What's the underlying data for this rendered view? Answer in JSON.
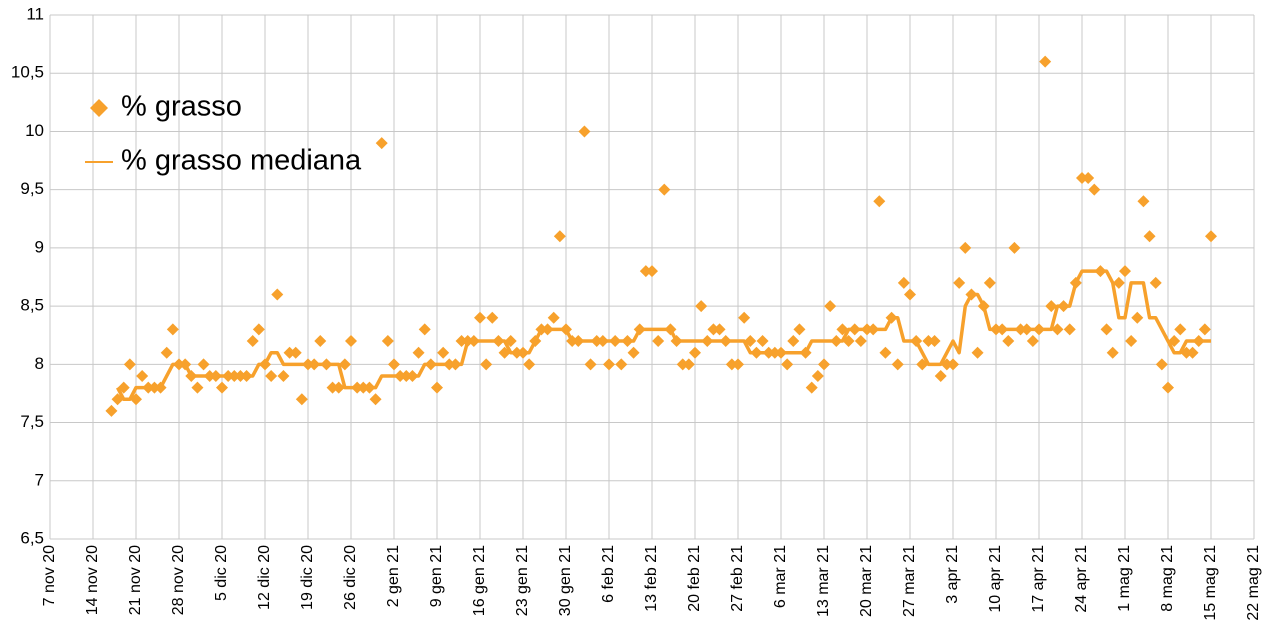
{
  "chart_data": {
    "type": "scatter-line",
    "x": [
      "2020-11-17",
      "2020-11-18",
      "2020-11-19",
      "2020-11-20",
      "2020-11-21",
      "2020-11-22",
      "2020-11-23",
      "2020-11-24",
      "2020-11-25",
      "2020-11-26",
      "2020-11-27",
      "2020-11-28",
      "2020-11-29",
      "2020-11-30",
      "2020-12-01",
      "2020-12-02",
      "2020-12-03",
      "2020-12-04",
      "2020-12-05",
      "2020-12-06",
      "2020-12-07",
      "2020-12-08",
      "2020-12-09",
      "2020-12-10",
      "2020-12-11",
      "2020-12-12",
      "2020-12-13",
      "2020-12-14",
      "2020-12-15",
      "2020-12-16",
      "2020-12-17",
      "2020-12-18",
      "2020-12-19",
      "2020-12-20",
      "2020-12-21",
      "2020-12-22",
      "2020-12-23",
      "2020-12-24",
      "2020-12-25",
      "2020-12-26",
      "2020-12-27",
      "2020-12-28",
      "2020-12-29",
      "2020-12-30",
      "2020-12-31",
      "2021-01-01",
      "2021-01-02",
      "2021-01-03",
      "2021-01-04",
      "2021-01-05",
      "2021-01-06",
      "2021-01-07",
      "2021-01-08",
      "2021-01-09",
      "2021-01-10",
      "2021-01-11",
      "2021-01-12",
      "2021-01-13",
      "2021-01-14",
      "2021-01-15",
      "2021-01-16",
      "2021-01-17",
      "2021-01-18",
      "2021-01-19",
      "2021-01-20",
      "2021-01-21",
      "2021-01-22",
      "2021-01-23",
      "2021-01-24",
      "2021-01-25",
      "2021-01-26",
      "2021-01-27",
      "2021-01-28",
      "2021-01-29",
      "2021-01-30",
      "2021-01-31",
      "2021-02-01",
      "2021-02-02",
      "2021-02-03",
      "2021-02-04",
      "2021-02-05",
      "2021-02-06",
      "2021-02-07",
      "2021-02-08",
      "2021-02-09",
      "2021-02-10",
      "2021-02-11",
      "2021-02-12",
      "2021-02-13",
      "2021-02-14",
      "2021-02-15",
      "2021-02-16",
      "2021-02-17",
      "2021-02-18",
      "2021-02-19",
      "2021-02-20",
      "2021-02-21",
      "2021-02-22",
      "2021-02-23",
      "2021-02-24",
      "2021-02-25",
      "2021-02-26",
      "2021-02-27",
      "2021-02-28",
      "2021-03-01",
      "2021-03-02",
      "2021-03-03",
      "2021-03-04",
      "2021-03-05",
      "2021-03-06",
      "2021-03-07",
      "2021-03-08",
      "2021-03-09",
      "2021-03-10",
      "2021-03-11",
      "2021-03-12",
      "2021-03-13",
      "2021-03-14",
      "2021-03-15",
      "2021-03-16",
      "2021-03-17",
      "2021-03-18",
      "2021-03-19",
      "2021-03-20",
      "2021-03-21",
      "2021-03-22",
      "2021-03-23",
      "2021-03-24",
      "2021-03-25",
      "2021-03-26",
      "2021-03-27",
      "2021-03-28",
      "2021-03-29",
      "2021-03-30",
      "2021-03-31",
      "2021-04-01",
      "2021-04-02",
      "2021-04-03",
      "2021-04-04",
      "2021-04-05",
      "2021-04-06",
      "2021-04-07",
      "2021-04-08",
      "2021-04-09",
      "2021-04-10",
      "2021-04-11",
      "2021-04-12",
      "2021-04-13",
      "2021-04-14",
      "2021-04-15",
      "2021-04-16",
      "2021-04-17",
      "2021-04-18",
      "2021-04-19",
      "2021-04-20",
      "2021-04-21",
      "2021-04-22",
      "2021-04-23",
      "2021-04-24",
      "2021-04-25",
      "2021-04-26",
      "2021-04-27",
      "2021-04-28",
      "2021-04-29",
      "2021-04-30",
      "2021-05-01",
      "2021-05-02",
      "2021-05-03",
      "2021-05-04",
      "2021-05-05",
      "2021-05-06",
      "2021-05-07",
      "2021-05-08",
      "2021-05-09",
      "2021-05-10",
      "2021-05-11",
      "2021-05-12",
      "2021-05-13",
      "2021-05-14",
      "2021-05-15"
    ],
    "series": [
      {
        "name": "% grasso",
        "kind": "scatter",
        "color": "#f7a12c",
        "values": [
          7.6,
          7.7,
          7.8,
          8.0,
          7.7,
          7.9,
          7.8,
          7.8,
          7.8,
          8.1,
          8.3,
          8.0,
          8.0,
          7.9,
          7.8,
          8.0,
          7.9,
          7.9,
          7.8,
          7.9,
          7.9,
          7.9,
          7.9,
          8.2,
          8.3,
          8.0,
          7.9,
          8.6,
          7.9,
          8.1,
          8.1,
          7.7,
          8.0,
          8.0,
          8.2,
          8.0,
          7.8,
          7.8,
          8.0,
          8.2,
          7.8,
          7.8,
          7.8,
          7.7,
          9.9,
          8.2,
          8.0,
          7.9,
          7.9,
          7.9,
          8.1,
          8.3,
          8.0,
          7.8,
          8.1,
          8.0,
          8.0,
          8.2,
          8.2,
          8.2,
          8.4,
          8.0,
          8.4,
          8.2,
          8.1,
          8.2,
          8.1,
          8.1,
          8.0,
          8.2,
          8.3,
          8.3,
          8.4,
          9.1,
          8.3,
          8.2,
          8.2,
          10.0,
          8.0,
          8.2,
          8.2,
          8.0,
          8.2,
          8.0,
          8.2,
          8.1,
          8.3,
          8.8,
          8.8,
          8.2,
          9.5,
          8.3,
          8.2,
          8.0,
          8.0,
          8.1,
          8.5,
          8.2,
          8.3,
          8.3,
          8.2,
          8.0,
          8.0,
          8.4,
          8.2,
          8.1,
          8.2,
          8.1,
          8.1,
          8.1,
          8.0,
          8.2,
          8.3,
          8.1,
          7.8,
          7.9,
          8.0,
          8.5,
          8.2,
          8.3,
          8.2,
          8.3,
          8.2,
          8.3,
          8.3,
          9.4,
          8.1,
          8.4,
          8.0,
          8.7,
          8.6,
          8.2,
          8.0,
          8.2,
          8.2,
          7.9,
          8.0,
          8.0,
          8.7,
          9.0,
          8.6,
          8.1,
          8.5,
          8.7,
          8.3,
          8.3,
          8.2,
          9.0,
          8.3,
          8.3,
          8.2,
          8.3,
          10.6,
          8.5,
          8.3,
          8.5,
          8.3,
          8.7,
          9.6,
          9.6,
          9.5,
          8.8,
          8.3,
          8.1,
          8.7,
          8.8,
          8.2,
          8.4,
          9.4,
          9.1,
          8.7,
          8.0,
          7.8,
          8.2,
          8.3,
          8.1,
          8.1,
          8.2,
          8.3,
          9.1
        ]
      },
      {
        "name": "% grasso mediana",
        "kind": "line",
        "color": "#f7a12c",
        "values": [
          null,
          7.8,
          7.7,
          7.7,
          7.8,
          7.8,
          7.8,
          7.8,
          7.8,
          7.9,
          8.0,
          8.0,
          8.0,
          7.9,
          7.9,
          7.9,
          7.9,
          7.9,
          7.9,
          7.9,
          7.9,
          7.9,
          7.9,
          7.9,
          8.0,
          8.0,
          8.1,
          8.1,
          8.0,
          8.0,
          8.0,
          8.0,
          8.0,
          8.0,
          8.0,
          8.0,
          8.0,
          8.0,
          7.8,
          7.8,
          7.8,
          7.8,
          7.8,
          7.8,
          7.9,
          7.9,
          7.9,
          7.9,
          7.9,
          7.9,
          7.9,
          8.0,
          8.0,
          8.0,
          8.0,
          8.0,
          8.0,
          8.0,
          8.2,
          8.2,
          8.2,
          8.2,
          8.2,
          8.2,
          8.2,
          8.1,
          8.1,
          8.1,
          8.1,
          8.2,
          8.3,
          8.3,
          8.3,
          8.3,
          8.3,
          8.2,
          8.2,
          8.2,
          8.2,
          8.2,
          8.2,
          8.2,
          8.2,
          8.2,
          8.2,
          8.2,
          8.3,
          8.3,
          8.3,
          8.3,
          8.3,
          8.3,
          8.2,
          8.2,
          8.2,
          8.2,
          8.2,
          8.2,
          8.2,
          8.2,
          8.2,
          8.2,
          8.2,
          8.2,
          8.1,
          8.1,
          8.1,
          8.1,
          8.1,
          8.1,
          8.1,
          8.1,
          8.1,
          8.1,
          8.2,
          8.2,
          8.2,
          8.2,
          8.2,
          8.2,
          8.3,
          8.3,
          8.3,
          8.3,
          8.3,
          8.3,
          8.3,
          8.4,
          8.4,
          8.2,
          8.2,
          8.2,
          8.1,
          8.0,
          8.0,
          8.0,
          8.1,
          8.2,
          8.1,
          8.5,
          8.6,
          8.6,
          8.5,
          8.3,
          8.3,
          8.3,
          8.3,
          8.3,
          8.3,
          8.3,
          8.3,
          8.3,
          8.3,
          8.3,
          8.5,
          8.5,
          8.5,
          8.7,
          8.8,
          8.8,
          8.8,
          8.8,
          8.8,
          8.7,
          8.4,
          8.4,
          8.7,
          8.7,
          8.7,
          8.4,
          8.4,
          8.3,
          8.2,
          8.1,
          8.1,
          8.2,
          8.2,
          8.2,
          8.2,
          8.2
        ]
      }
    ],
    "xlim": [
      "2020-11-07",
      "2021-05-22"
    ],
    "xticks": [
      {
        "value": "2020-11-07",
        "label": "7 nov 20"
      },
      {
        "value": "2020-11-14",
        "label": "14 nov 20"
      },
      {
        "value": "2020-11-21",
        "label": "21 nov 20"
      },
      {
        "value": "2020-11-28",
        "label": "28 nov 20"
      },
      {
        "value": "2020-12-05",
        "label": "5 dic 20"
      },
      {
        "value": "2020-12-12",
        "label": "12 dic 20"
      },
      {
        "value": "2020-12-19",
        "label": "19 dic 20"
      },
      {
        "value": "2020-12-26",
        "label": "26 dic 20"
      },
      {
        "value": "2021-01-02",
        "label": "2 gen 21"
      },
      {
        "value": "2021-01-09",
        "label": "9 gen 21"
      },
      {
        "value": "2021-01-16",
        "label": "16 gen 21"
      },
      {
        "value": "2021-01-23",
        "label": "23 gen 21"
      },
      {
        "value": "2021-01-30",
        "label": "30 gen 21"
      },
      {
        "value": "2021-02-06",
        "label": "6 feb 21"
      },
      {
        "value": "2021-02-13",
        "label": "13 feb 21"
      },
      {
        "value": "2021-02-20",
        "label": "20 feb 21"
      },
      {
        "value": "2021-02-27",
        "label": "27 feb 21"
      },
      {
        "value": "2021-03-06",
        "label": "6 mar 21"
      },
      {
        "value": "2021-03-13",
        "label": "13 mar 21"
      },
      {
        "value": "2021-03-20",
        "label": "20 mar 21"
      },
      {
        "value": "2021-03-27",
        "label": "27 mar 21"
      },
      {
        "value": "2021-04-03",
        "label": "3 apr 21"
      },
      {
        "value": "2021-04-10",
        "label": "10 apr 21"
      },
      {
        "value": "2021-04-17",
        "label": "17 apr 21"
      },
      {
        "value": "2021-04-24",
        "label": "24 apr 21"
      },
      {
        "value": "2021-05-01",
        "label": "1 mag 21"
      },
      {
        "value": "2021-05-08",
        "label": "8 mag 21"
      },
      {
        "value": "2021-05-15",
        "label": "15 mag 21"
      },
      {
        "value": "2021-05-22",
        "label": "22 mag 21"
      }
    ],
    "ylim": [
      6.5,
      11
    ],
    "yticks": [
      {
        "value": 6.5,
        "label": "6,5"
      },
      7,
      {
        "value": 7.5,
        "label": "7,5"
      },
      8,
      {
        "value": 8.5,
        "label": "8,5"
      },
      9,
      {
        "value": 9.5,
        "label": "9,5"
      },
      10,
      {
        "value": 10.5,
        "label": "10,5"
      },
      11
    ],
    "grid": true,
    "legend": "top-left"
  }
}
